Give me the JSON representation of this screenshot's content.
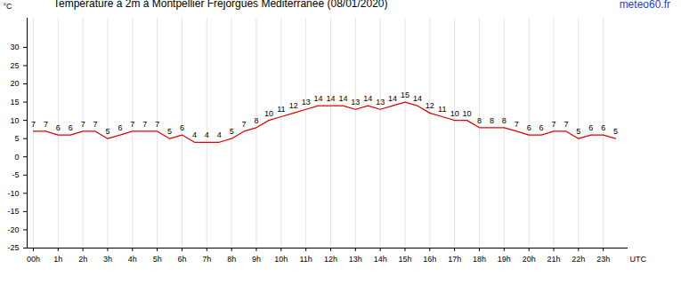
{
  "chart_data": {
    "type": "line",
    "title": "Température à 2m à Montpellier Frejorgues Mediterranee (08/01/2020)",
    "source": "meteo60.fr",
    "ylabel": "°C",
    "xlabel": "UTC",
    "x": [
      0,
      0.5,
      1,
      1.5,
      2,
      2.5,
      3,
      3.5,
      4,
      4.5,
      5,
      5.5,
      6,
      6.5,
      7,
      7.5,
      8,
      8.5,
      9,
      9.5,
      10,
      10.5,
      11,
      11.5,
      12,
      12.5,
      13,
      13.5,
      14,
      14.5,
      15,
      15.5,
      16,
      16.5,
      17,
      17.5,
      18,
      18.5,
      19,
      19.5,
      20,
      20.5,
      21,
      21.5,
      22,
      22.5,
      23,
      23.5
    ],
    "values": [
      7,
      7,
      6,
      6,
      7,
      7,
      5,
      6,
      7,
      7,
      7,
      5,
      6,
      4,
      4,
      4,
      5,
      7,
      8,
      10,
      11,
      12,
      13,
      14,
      14,
      14,
      13,
      14,
      13,
      14,
      15,
      14,
      12,
      11,
      10,
      10,
      8,
      8,
      8,
      7,
      6,
      6,
      7,
      7,
      5,
      6,
      6,
      5
    ],
    "color": "#e00000",
    "data_labels": true,
    "grid": "x",
    "xlim": [
      -0.25,
      24
    ],
    "xticks": [
      {
        "value": 0,
        "label": "00h"
      },
      {
        "value": 1,
        "label": "1h"
      },
      {
        "value": 2,
        "label": "2h"
      },
      {
        "value": 3,
        "label": "3h"
      },
      {
        "value": 4,
        "label": "4h"
      },
      {
        "value": 5,
        "label": "5h"
      },
      {
        "value": 6,
        "label": "6h"
      },
      {
        "value": 7,
        "label": "7h"
      },
      {
        "value": 8,
        "label": "8h"
      },
      {
        "value": 9,
        "label": "9h"
      },
      {
        "value": 10,
        "label": "10h"
      },
      {
        "value": 11,
        "label": "11h"
      },
      {
        "value": 12,
        "label": "12h"
      },
      {
        "value": 13,
        "label": "13h"
      },
      {
        "value": 14,
        "label": "14h"
      },
      {
        "value": 15,
        "label": "15h"
      },
      {
        "value": 16,
        "label": "16h"
      },
      {
        "value": 17,
        "label": "17h"
      },
      {
        "value": 18,
        "label": "18h"
      },
      {
        "value": 19,
        "label": "19h"
      },
      {
        "value": 20,
        "label": "20h"
      },
      {
        "value": 21,
        "label": "21h"
      },
      {
        "value": 22,
        "label": "22h"
      },
      {
        "value": 23,
        "label": "23h"
      }
    ],
    "ylim": [
      -25,
      38
    ],
    "yticks": [
      -25,
      -20,
      -15,
      -10,
      -5,
      0,
      5,
      10,
      15,
      20,
      25,
      30
    ]
  }
}
